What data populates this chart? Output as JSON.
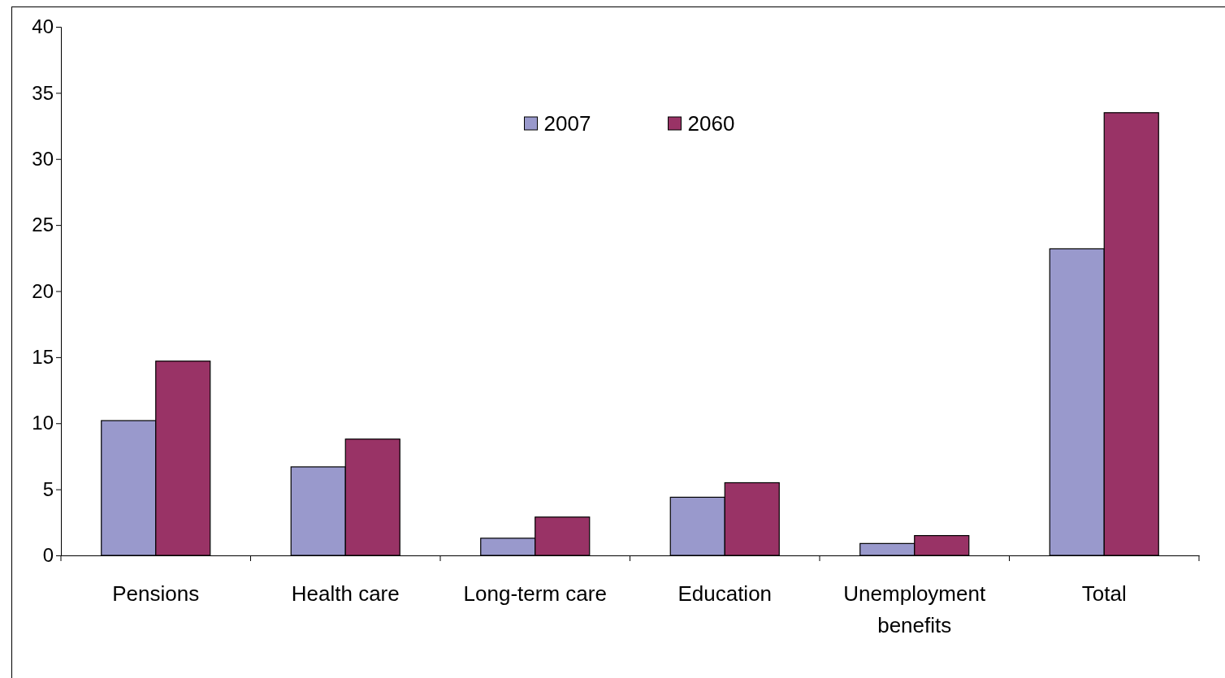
{
  "chart_data": {
    "type": "bar",
    "categories": [
      "Pensions",
      "Health care",
      "Long-term care",
      "Education",
      "Unemployment benefits",
      "Total"
    ],
    "series": [
      {
        "name": "2007",
        "color": "#9999cc",
        "values": [
          10.2,
          6.7,
          1.3,
          4.4,
          0.9,
          23.2
        ]
      },
      {
        "name": "2060",
        "color": "#993366",
        "values": [
          14.7,
          8.8,
          2.9,
          5.5,
          1.5,
          33.5
        ]
      }
    ],
    "ylim": [
      0,
      40
    ],
    "yticks": [
      0,
      5,
      10,
      15,
      20,
      25,
      30,
      35,
      40
    ],
    "grid": false,
    "legend": "top"
  }
}
